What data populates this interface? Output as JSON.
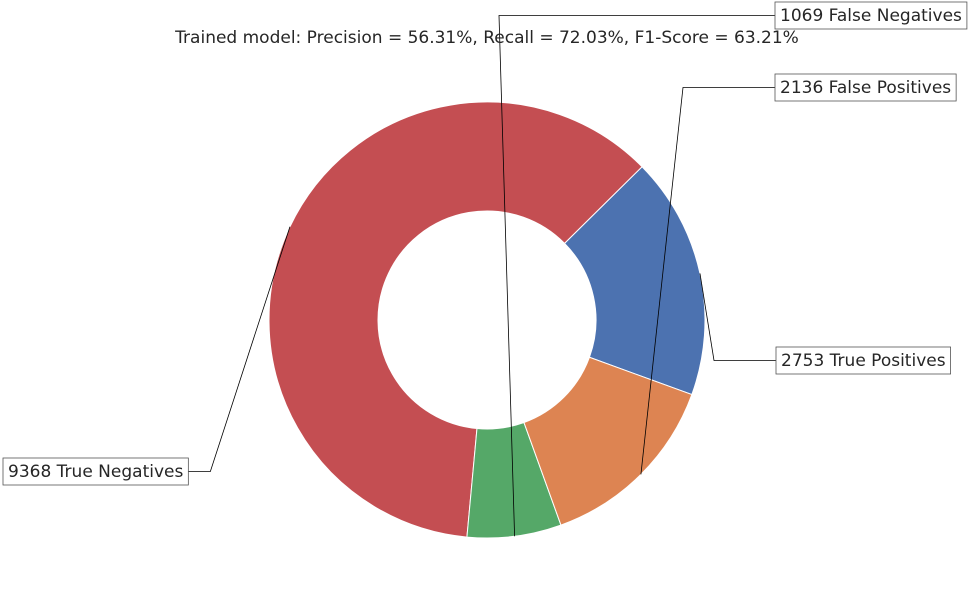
{
  "chart_data": {
    "type": "pie",
    "style": "donut",
    "title": "Trained model: Precision = 56.31%, Recall = 72.03%, F1-Score = 63.21%",
    "slices": [
      {
        "label": "2753 True Positives",
        "value": 2753,
        "color": "#4c72b0"
      },
      {
        "label": "9368 True Negatives",
        "value": 9368,
        "color": "#c44e52"
      },
      {
        "label": "1069 False Negatives",
        "value": 1069,
        "color": "#55a868"
      },
      {
        "label": "2136 False Positives",
        "value": 2136,
        "color": "#dd8452"
      }
    ],
    "start_angle_deg": -20,
    "direction": "counterclockwise",
    "legend": "none"
  }
}
